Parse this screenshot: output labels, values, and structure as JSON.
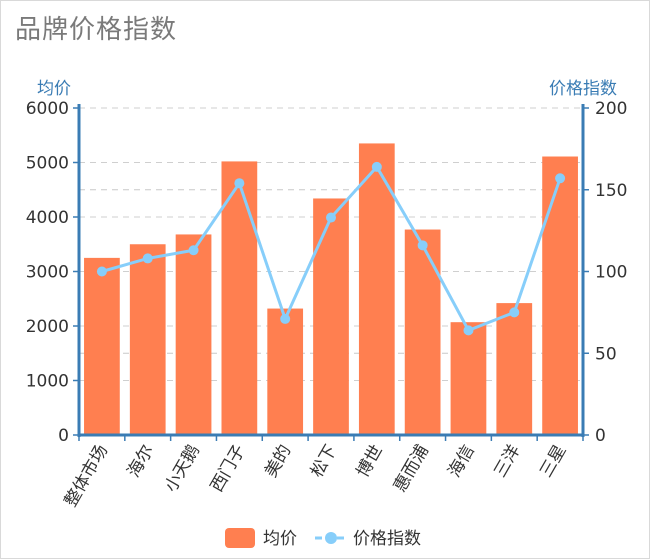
{
  "chart_data": {
    "type": "bar",
    "title": "品牌价格指数",
    "categories": [
      "整体市场",
      "海尔",
      "小天鹅",
      "西门子",
      "美的",
      "松下",
      "博世",
      "惠而浦",
      "海信",
      "三洋",
      "三星"
    ],
    "y_left": {
      "label": "均价",
      "ylim": [
        0,
        6000
      ],
      "ticks": [
        0,
        1000,
        2000,
        3000,
        4000,
        5000,
        6000
      ]
    },
    "y_right": {
      "label": "价格指数",
      "ylim": [
        0,
        200
      ],
      "ticks": [
        0,
        50,
        100,
        150,
        200
      ]
    },
    "series": [
      {
        "name": "均价",
        "type": "bar",
        "axis": "left",
        "color": "#ff7f50",
        "values": [
          3250,
          3500,
          3680,
          5020,
          2320,
          4340,
          5350,
          3770,
          2070,
          2420,
          5110
        ]
      },
      {
        "name": "价格指数",
        "type": "line",
        "axis": "right",
        "color": "#87cefa",
        "values": [
          100,
          108,
          113,
          154,
          71,
          133,
          164,
          116,
          64,
          75,
          157
        ]
      }
    ],
    "grid": true,
    "legend": "bottom-center"
  }
}
